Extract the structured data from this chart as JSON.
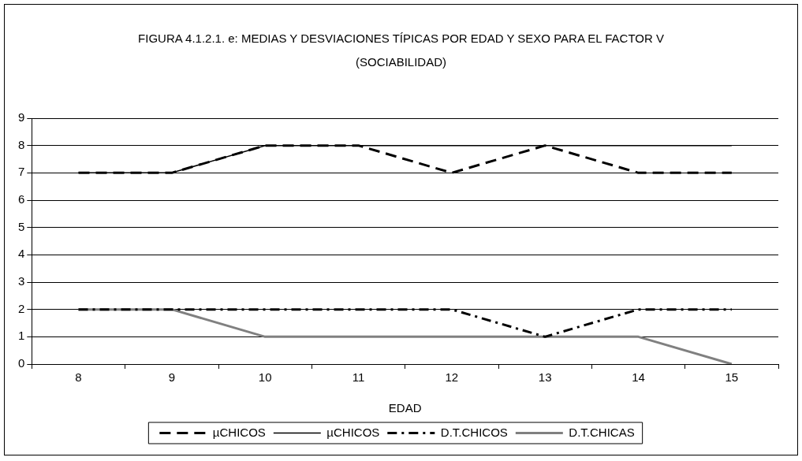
{
  "chart_data": {
    "type": "line",
    "title": "FIGURA 4.1.2.1. e: MEDIAS Y DESVIACIONES TÍPICAS POR EDAD Y SEXO PARA EL FACTOR V (SOCIABILIDAD)",
    "xlabel": "EDAD",
    "categories": [
      "8",
      "9",
      "10",
      "11",
      "12",
      "13",
      "14",
      "15"
    ],
    "series": [
      {
        "name": "µCHICOS",
        "color": "#000000",
        "line_style": "dashed",
        "values": [
          7,
          7,
          8,
          8,
          7,
          8,
          7,
          7
        ]
      },
      {
        "name": "µCHICOS",
        "color": "#000000",
        "line_style": "solid",
        "values": [
          7,
          7,
          8,
          8,
          8,
          8,
          8,
          8
        ]
      },
      {
        "name": "D.T.CHICOS",
        "color": "#000000",
        "line_style": "dashdot",
        "values": [
          2,
          2,
          2,
          2,
          2,
          1,
          2,
          2
        ]
      },
      {
        "name": "D.T.CHICAS",
        "color": "#808080",
        "line_style": "solid",
        "values": [
          2,
          2,
          1,
          1,
          1,
          1,
          1,
          0
        ]
      }
    ],
    "ylim": [
      0,
      9
    ],
    "yticks": [
      0,
      1,
      2,
      3,
      4,
      5,
      6,
      7,
      8,
      9
    ],
    "grid": "y",
    "legend": "bottom",
    "marker": "none"
  }
}
